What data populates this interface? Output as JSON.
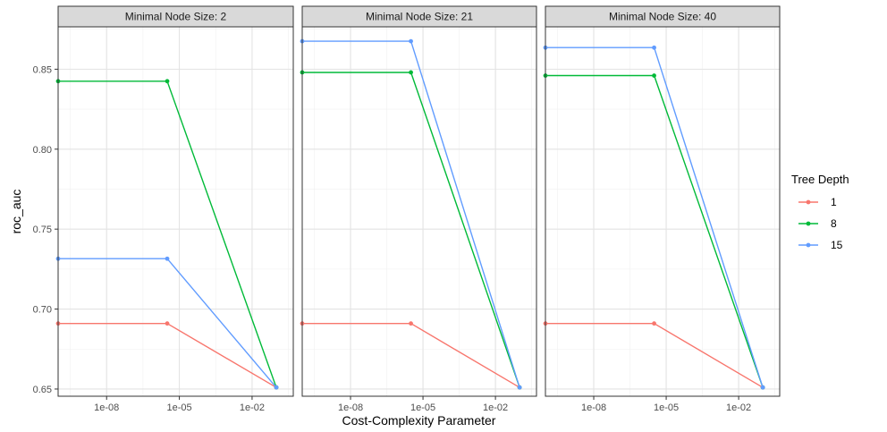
{
  "chart_data": {
    "type": "line",
    "xlabel": "Cost-Complexity Parameter",
    "ylabel": "roc_auc",
    "x_scale": "log10",
    "xlim": [
      1e-10,
      0.5
    ],
    "ylim": [
      0.6455,
      0.8765
    ],
    "x_ticks": [
      1e-08,
      1e-05,
      0.01
    ],
    "x_tick_labels": [
      "1e-08",
      "1e-05",
      "1e-02"
    ],
    "y_ticks": [
      0.65,
      0.7,
      0.75,
      0.8,
      0.85
    ],
    "y_tick_labels": [
      "0.65",
      "0.70",
      "0.75",
      "0.80",
      "0.85"
    ],
    "grid": true,
    "legend": {
      "title": "Tree Depth",
      "position": "right",
      "entries": [
        {
          "label": "1",
          "color": "#F8766D"
        },
        {
          "label": "8",
          "color": "#00BA38"
        },
        {
          "label": "15",
          "color": "#619CFF"
        }
      ]
    },
    "facets": [
      {
        "title": "Minimal Node Size: 2",
        "series": [
          {
            "depth": "1",
            "color": "#F8766D",
            "x": [
              1e-10,
              3.16e-06,
              0.1
            ],
            "y": [
              0.691,
              0.691,
              0.651
            ]
          },
          {
            "depth": "8",
            "color": "#00BA38",
            "x": [
              1e-10,
              3.16e-06,
              0.1
            ],
            "y": [
              0.8425,
              0.8425,
              0.651
            ]
          },
          {
            "depth": "15",
            "color": "#619CFF",
            "x": [
              1e-10,
              3.16e-06,
              0.1
            ],
            "y": [
              0.7315,
              0.7315,
              0.651
            ]
          }
        ]
      },
      {
        "title": "Minimal Node Size: 21",
        "series": [
          {
            "depth": "1",
            "color": "#F8766D",
            "x": [
              1e-10,
              3.16e-06,
              0.1
            ],
            "y": [
              0.691,
              0.691,
              0.651
            ]
          },
          {
            "depth": "8",
            "color": "#00BA38",
            "x": [
              1e-10,
              3.16e-06,
              0.1
            ],
            "y": [
              0.848,
              0.848,
              0.651
            ]
          },
          {
            "depth": "15",
            "color": "#619CFF",
            "x": [
              1e-10,
              3.16e-06,
              0.1
            ],
            "y": [
              0.8675,
              0.8675,
              0.651
            ]
          }
        ]
      },
      {
        "title": "Minimal Node Size: 40",
        "series": [
          {
            "depth": "1",
            "color": "#F8766D",
            "x": [
              1e-10,
              3.16e-06,
              0.1
            ],
            "y": [
              0.691,
              0.691,
              0.651
            ]
          },
          {
            "depth": "8",
            "color": "#00BA38",
            "x": [
              1e-10,
              3.16e-06,
              0.1
            ],
            "y": [
              0.846,
              0.846,
              0.651
            ]
          },
          {
            "depth": "15",
            "color": "#619CFF",
            "x": [
              1e-10,
              3.16e-06,
              0.1
            ],
            "y": [
              0.8635,
              0.8635,
              0.651
            ]
          }
        ]
      }
    ]
  }
}
